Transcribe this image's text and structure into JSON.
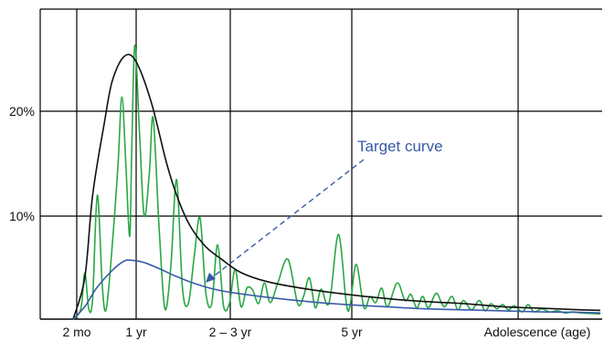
{
  "chart_data": {
    "type": "line",
    "title": "",
    "xlabel": "",
    "ylabel": "",
    "grid": true,
    "x_tick_labels": [
      "2 mo",
      "1 yr",
      "2 – 3 yr",
      "5 yr",
      "Adolescence  (age)"
    ],
    "y_tick_labels": [
      "10%",
      "20%"
    ],
    "ylim": [
      0,
      30
    ],
    "annotation": {
      "text": "Target curve",
      "points_to": "blue curve"
    },
    "series": [
      {
        "color": "#111111",
        "points": [
          [
            0,
            0
          ],
          [
            0.3,
            4
          ],
          [
            0.5,
            12
          ],
          [
            0.8,
            19
          ],
          [
            1,
            23
          ],
          [
            1.3,
            25.4
          ],
          [
            1.6,
            25
          ],
          [
            2,
            21
          ],
          [
            2.4,
            15
          ],
          [
            2.7,
            11.5
          ],
          [
            3,
            9
          ],
          [
            3.4,
            7
          ],
          [
            3.8,
            5.8
          ],
          [
            4.3,
            4.5
          ],
          [
            5,
            3.6
          ],
          [
            6,
            2.9
          ],
          [
            7,
            2.4
          ],
          [
            8,
            2
          ],
          [
            9,
            1.7
          ],
          [
            10,
            1.5
          ],
          [
            11,
            1.2
          ],
          [
            12,
            1.05
          ],
          [
            13,
            0.9
          ],
          [
            13.5,
            0.85
          ]
        ]
      },
      {
        "color": "#3a5aa8",
        "points": [
          [
            0,
            0
          ],
          [
            0.3,
            1.2
          ],
          [
            0.6,
            3
          ],
          [
            1,
            4.7
          ],
          [
            1.3,
            5.6
          ],
          [
            1.5,
            5.7
          ],
          [
            1.8,
            5.5
          ],
          [
            2.2,
            4.9
          ],
          [
            2.6,
            4.2
          ],
          [
            3,
            3.6
          ],
          [
            3.5,
            3
          ],
          [
            4,
            2.6
          ],
          [
            5,
            2.1
          ],
          [
            6,
            1.7
          ],
          [
            7,
            1.4
          ],
          [
            8,
            1.2
          ],
          [
            9,
            1
          ],
          [
            10,
            0.9
          ],
          [
            11,
            0.8
          ],
          [
            12,
            0.7
          ],
          [
            13,
            0.65
          ],
          [
            13.5,
            0.6
          ]
        ]
      },
      {
        "color": "#28a745",
        "points": [
          [
            0,
            0
          ],
          [
            0.2,
            1
          ],
          [
            0.3,
            4.5
          ],
          [
            0.4,
            1
          ],
          [
            0.5,
            2
          ],
          [
            0.62,
            12
          ],
          [
            0.75,
            3
          ],
          [
            0.85,
            1
          ],
          [
            1,
            7
          ],
          [
            1.15,
            15
          ],
          [
            1.25,
            21.5
          ],
          [
            1.35,
            15
          ],
          [
            1.45,
            8
          ],
          [
            1.5,
            16
          ],
          [
            1.58,
            26.5
          ],
          [
            1.7,
            18
          ],
          [
            1.82,
            10
          ],
          [
            1.95,
            14
          ],
          [
            2.05,
            19.5
          ],
          [
            2.2,
            9
          ],
          [
            2.35,
            1
          ],
          [
            2.5,
            5
          ],
          [
            2.65,
            13.5
          ],
          [
            2.8,
            3
          ],
          [
            2.95,
            1.5
          ],
          [
            3.1,
            6
          ],
          [
            3.25,
            9.8
          ],
          [
            3.4,
            2.5
          ],
          [
            3.55,
            1.5
          ],
          [
            3.7,
            7.2
          ],
          [
            3.85,
            1.3
          ],
          [
            4,
            1.5
          ],
          [
            4.15,
            4.8
          ],
          [
            4.3,
            1.2
          ],
          [
            4.45,
            3
          ],
          [
            4.6,
            2.8
          ],
          [
            4.75,
            1.5
          ],
          [
            4.9,
            3.5
          ],
          [
            5.05,
            1.6
          ],
          [
            5.25,
            3.6
          ],
          [
            5.5,
            5.8
          ],
          [
            5.75,
            1.5
          ],
          [
            5.9,
            2.2
          ],
          [
            6.05,
            4
          ],
          [
            6.2,
            1.1
          ],
          [
            6.35,
            2.9
          ],
          [
            6.5,
            1.4
          ],
          [
            6.6,
            2.5
          ],
          [
            6.8,
            8.2
          ],
          [
            7,
            1.4
          ],
          [
            7.1,
            1.5
          ],
          [
            7.25,
            5.3
          ],
          [
            7.45,
            1.1
          ],
          [
            7.6,
            2.2
          ],
          [
            7.75,
            1.6
          ],
          [
            7.9,
            3
          ],
          [
            8.05,
            1.2
          ],
          [
            8.3,
            3.5
          ],
          [
            8.5,
            1.8
          ],
          [
            8.65,
            2.4
          ],
          [
            8.8,
            1.1
          ],
          [
            8.95,
            2.2
          ],
          [
            9.1,
            1.1
          ],
          [
            9.3,
            2.5
          ],
          [
            9.5,
            1.2
          ],
          [
            9.7,
            2.2
          ],
          [
            9.85,
            0.9
          ],
          [
            10,
            1.8
          ],
          [
            10.2,
            0.9
          ],
          [
            10.4,
            1.8
          ],
          [
            10.55,
            0.8
          ],
          [
            10.7,
            1.5
          ],
          [
            10.85,
            1
          ],
          [
            11,
            1.4
          ],
          [
            11.15,
            0.9
          ],
          [
            11.3,
            1.3
          ],
          [
            11.5,
            0.7
          ],
          [
            11.65,
            1.4
          ],
          [
            11.8,
            0.7
          ],
          [
            12,
            1
          ],
          [
            12.2,
            0.7
          ],
          [
            12.4,
            0.8
          ],
          [
            12.6,
            0.6
          ],
          [
            12.8,
            0.7
          ],
          [
            13,
            0.6
          ],
          [
            13.5,
            0.5
          ]
        ]
      }
    ]
  }
}
